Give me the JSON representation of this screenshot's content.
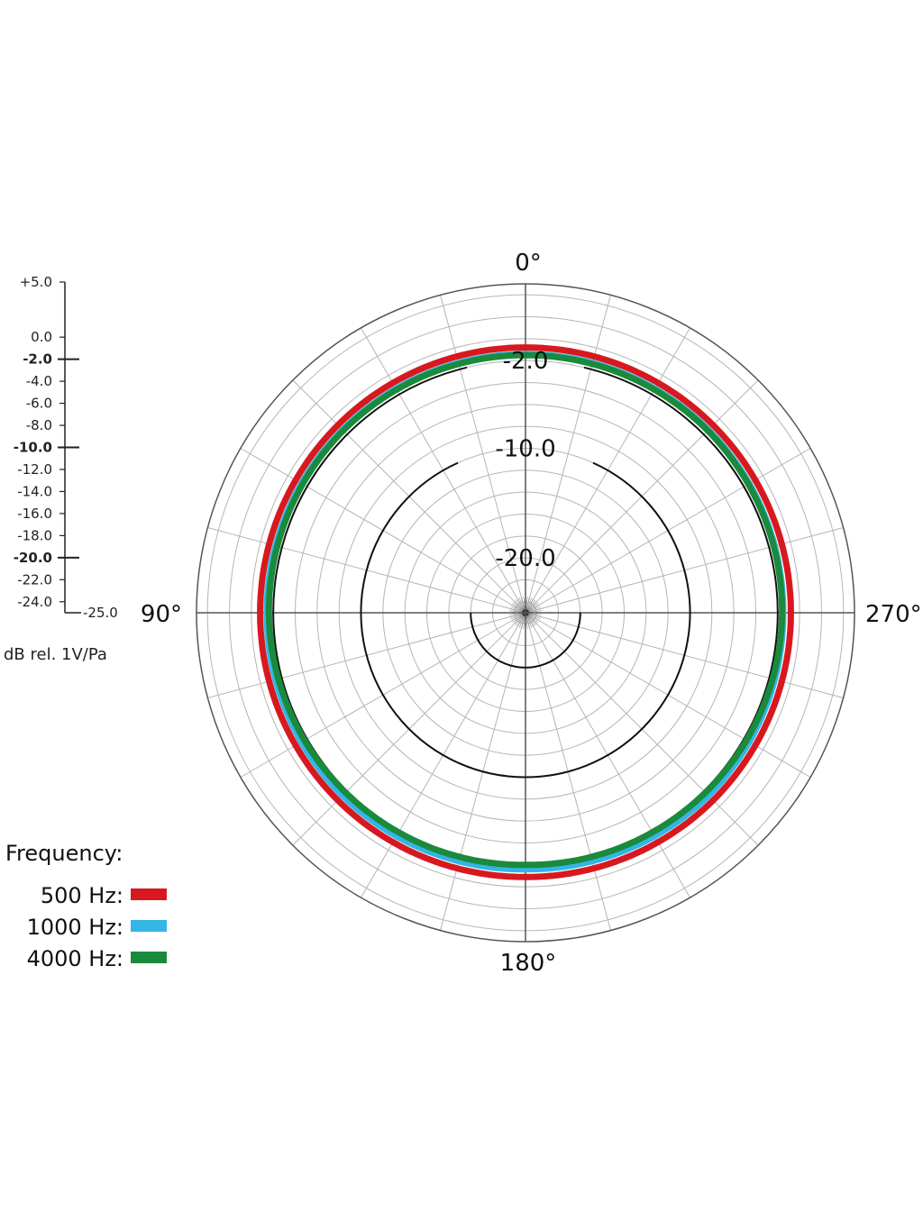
{
  "chart_data": {
    "type": "polar",
    "angle_labels": {
      "top": "0°",
      "left": "90°",
      "right": "270°",
      "bottom": "180°"
    },
    "radial_unit": "dB rel. 1V/Pa",
    "r_range": [
      -25.0,
      5.0
    ],
    "scale_ticks": [
      {
        "value": 5,
        "label": "+5.0",
        "major": false
      },
      {
        "value": 0,
        "label": "0.0",
        "major": false
      },
      {
        "value": -2,
        "label": "-2.0",
        "major": true
      },
      {
        "value": -4,
        "label": "-4.0",
        "major": false
      },
      {
        "value": -6,
        "label": "-6.0",
        "major": false
      },
      {
        "value": -8,
        "label": "-8.0",
        "major": false
      },
      {
        "value": -10,
        "label": "-10.0",
        "major": true
      },
      {
        "value": -12,
        "label": "-12.0",
        "major": false
      },
      {
        "value": -14,
        "label": "-14.0",
        "major": false
      },
      {
        "value": -16,
        "label": "-16.0",
        "major": false
      },
      {
        "value": -18,
        "label": "-18.0",
        "major": false
      },
      {
        "value": -20,
        "label": "-20.0",
        "major": true
      },
      {
        "value": -22,
        "label": "-22.0",
        "major": false
      },
      {
        "value": -24,
        "label": "-24.0",
        "major": false
      },
      {
        "value": -25,
        "label": "-25.0",
        "major": false
      }
    ],
    "ring_labels": [
      {
        "value": -2,
        "label": "-2.0"
      },
      {
        "value": -10,
        "label": "-10.0"
      },
      {
        "value": -20,
        "label": "-20.0"
      }
    ],
    "angle_step_deg": 15,
    "grid": true,
    "legend": {
      "title": "Frequency:",
      "placement": "bottom-left",
      "entries": [
        {
          "label": "500 Hz:",
          "color": "#d7191f"
        },
        {
          "label": "1000 Hz:",
          "color": "#33b6e6"
        },
        {
          "label": "4000 Hz:",
          "color": "#1a8a3c"
        }
      ]
    },
    "series": [
      {
        "name": "500 Hz",
        "color": "#d7191f",
        "theta_deg": [
          0,
          45,
          90,
          135,
          180,
          225,
          270,
          315
        ],
        "r": [
          -0.8,
          -0.8,
          -0.8,
          -0.8,
          -0.9,
          -0.8,
          -0.8,
          -0.8
        ]
      },
      {
        "name": "1000 Hz",
        "color": "#33b6e6",
        "theta_deg": [
          0,
          45,
          90,
          135,
          180,
          225,
          270,
          315
        ],
        "r": [
          -1.4,
          -1.4,
          -1.4,
          -1.4,
          -1.6,
          -1.4,
          -1.5,
          -1.4
        ]
      },
      {
        "name": "4000 Hz",
        "color": "#1a8a3c",
        "theta_deg": [
          0,
          45,
          90,
          135,
          180,
          225,
          270,
          315
        ],
        "r": [
          -1.5,
          -1.5,
          -1.6,
          -1.8,
          -2.0,
          -1.8,
          -1.6,
          -1.5
        ]
      }
    ]
  }
}
